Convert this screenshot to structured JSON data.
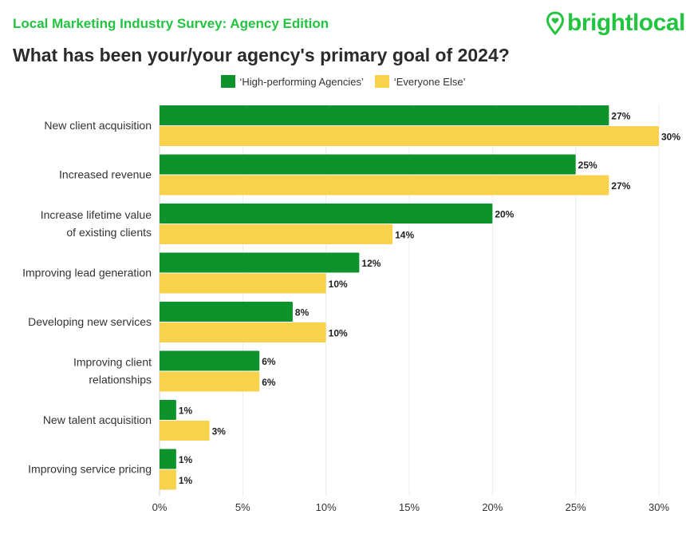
{
  "header": {
    "subtitle": "Local Marketing Industry Survey: Agency Edition",
    "brand": "brightlocal",
    "brand_icon": "map-pin-heart-icon"
  },
  "colors": {
    "high": "#0e922c",
    "else": "#f8d24a",
    "brand": "#22c440"
  },
  "chart_data": {
    "type": "bar",
    "orientation": "horizontal",
    "title": "What has been your/your agency's primary goal of 2024?",
    "categories": [
      [
        "New client acquisition"
      ],
      [
        "Increased revenue"
      ],
      [
        "Increase lifetime value",
        "of existing clients"
      ],
      [
        "Improving lead generation"
      ],
      [
        "Developing new services"
      ],
      [
        "Improving client",
        "relationships"
      ],
      [
        "New talent acquisition"
      ],
      [
        "Improving service pricing"
      ]
    ],
    "series": [
      {
        "name": "‘High-performing Agencies’",
        "values": [
          27,
          25,
          20,
          12,
          8,
          6,
          1,
          1
        ]
      },
      {
        "name": "‘Everyone Else’",
        "values": [
          30,
          27,
          14,
          10,
          10,
          6,
          3,
          1
        ]
      }
    ],
    "xlim": [
      0,
      30
    ],
    "xticks": [
      "0%",
      "5%",
      "10%",
      "15%",
      "20%",
      "25%",
      "30%"
    ],
    "xtick_values": [
      0,
      5,
      10,
      15,
      20,
      25,
      30
    ],
    "value_suffix": "%",
    "grid": "vertical",
    "legend_position": "top-center"
  }
}
